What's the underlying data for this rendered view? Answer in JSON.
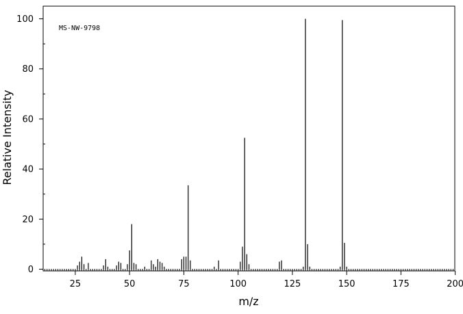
{
  "chart_data": {
    "type": "bar",
    "title": "",
    "annotation": "MS-NW-9798",
    "xlabel": "m/z",
    "ylabel": "Relative Intensity",
    "xlim": [
      10,
      200
    ],
    "ylim": [
      0,
      105
    ],
    "x_ticks": [
      25,
      50,
      75,
      100,
      125,
      150,
      175,
      200
    ],
    "y_ticks": [
      0,
      20,
      40,
      60,
      80,
      100
    ],
    "grid": false,
    "series": [
      {
        "x": [
          26,
          27,
          28,
          29,
          31,
          38,
          39,
          40,
          44,
          45,
          46,
          49,
          50,
          51,
          52,
          53,
          57,
          60,
          61,
          62,
          63,
          64,
          65,
          66,
          74,
          75,
          76,
          77,
          78,
          89,
          91,
          101,
          102,
          103,
          104,
          105,
          119,
          120,
          130,
          131,
          132,
          133,
          147,
          148,
          149,
          150
        ],
        "values": [
          1.5,
          3,
          5,
          2,
          2.5,
          1.5,
          4,
          1,
          1.5,
          3,
          2.5,
          2,
          7.5,
          18,
          2.5,
          2,
          1,
          3.5,
          2,
          1,
          4,
          3,
          2.5,
          1,
          4,
          5,
          5,
          33.5,
          3.5,
          1,
          3.5,
          3,
          9,
          52.5,
          6,
          2,
          3,
          3.5,
          1,
          100,
          10,
          1,
          1,
          99.5,
          10.5,
          1
        ]
      }
    ]
  }
}
